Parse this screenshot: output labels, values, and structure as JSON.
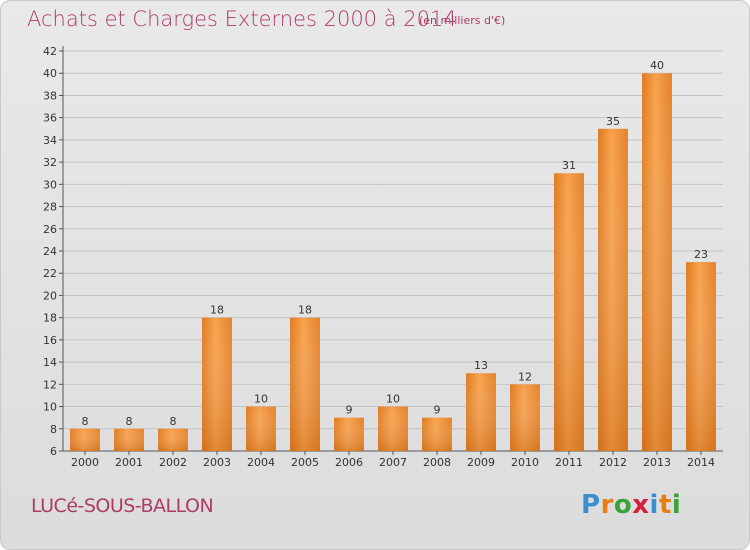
{
  "header": {
    "title": "Achats et Charges Externes 2000 à 2014",
    "subtitle": "(en milliers d'€)"
  },
  "footer": {
    "commune": "LUCé-SOUS-BALLON",
    "brand": "Proxiti",
    "brand_letters": [
      "P",
      "r",
      "o",
      "x",
      "i",
      "t",
      "i"
    ],
    "brand_colors": [
      "#3a8fd0",
      "#e87d12",
      "#3aa23a",
      "#d41e3c",
      "#3a8fd0",
      "#e87d12",
      "#3aa23a"
    ]
  },
  "chart_data": {
    "type": "bar",
    "title": "Achats et Charges Externes 2000 à 2014",
    "subtitle": "(en milliers d'€)",
    "categories": [
      "2000",
      "2001",
      "2002",
      "2003",
      "2004",
      "2005",
      "2006",
      "2007",
      "2008",
      "2009",
      "2010",
      "2011",
      "2012",
      "2013",
      "2014"
    ],
    "values": [
      8,
      8,
      8,
      18,
      10,
      18,
      9,
      10,
      9,
      13,
      12,
      31,
      35,
      40,
      23
    ],
    "ylim": [
      6,
      42
    ],
    "yticks": [
      6,
      8,
      10,
      12,
      14,
      16,
      18,
      20,
      22,
      24,
      26,
      28,
      30,
      32,
      34,
      36,
      38,
      40,
      42
    ],
    "grid": true,
    "bar_color": "#f5a04a",
    "bar_color_dark": "#d97118"
  }
}
